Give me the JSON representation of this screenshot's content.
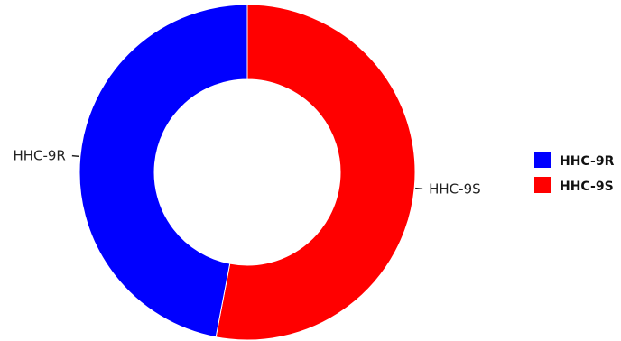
{
  "chart_data": {
    "type": "pie",
    "donut": true,
    "title": "",
    "categories": [
      "HHC-9R",
      "HHC-9S"
    ],
    "values": [
      47,
      53
    ],
    "colors": [
      "#0000ff",
      "#ff0000"
    ],
    "legend": {
      "placement": "right",
      "items": [
        "HHC-9R",
        "HHC-9S"
      ]
    }
  }
}
